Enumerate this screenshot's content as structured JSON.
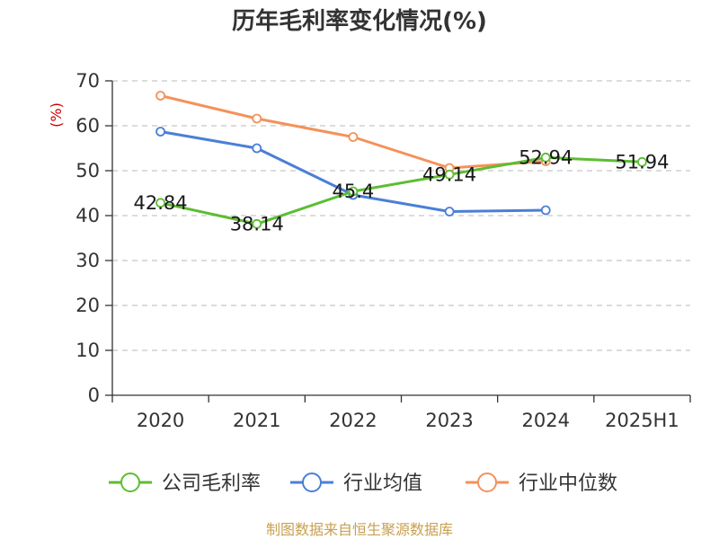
{
  "chart_data": {
    "type": "line",
    "title": "历年毛利率变化情况(%)",
    "ylabel": "(%)",
    "ylim": [
      0,
      70
    ],
    "yticks": [
      0,
      10,
      20,
      30,
      40,
      50,
      60,
      70
    ],
    "grid": true,
    "legend_position": "bottom",
    "categories": [
      "2020",
      "2021",
      "2022",
      "2023",
      "2024",
      "2025H1"
    ],
    "series": [
      {
        "name": "公司毛利率",
        "color": "#5cbd32",
        "values": [
          42.84,
          38.14,
          45.4,
          49.14,
          52.94,
          51.94
        ],
        "labels": [
          "42.84",
          "38.14",
          "45.4",
          "49.14",
          "52.94",
          "51.94"
        ]
      },
      {
        "name": "行业均值",
        "color": "#4b7fd6",
        "values": [
          58.7,
          55.0,
          44.6,
          40.9,
          41.2,
          null
        ]
      },
      {
        "name": "行业中位数",
        "color": "#f5915a",
        "values": [
          66.7,
          61.6,
          57.5,
          50.6,
          52.1,
          null
        ]
      }
    ]
  },
  "source": "制图数据来自恒生聚源数据库"
}
